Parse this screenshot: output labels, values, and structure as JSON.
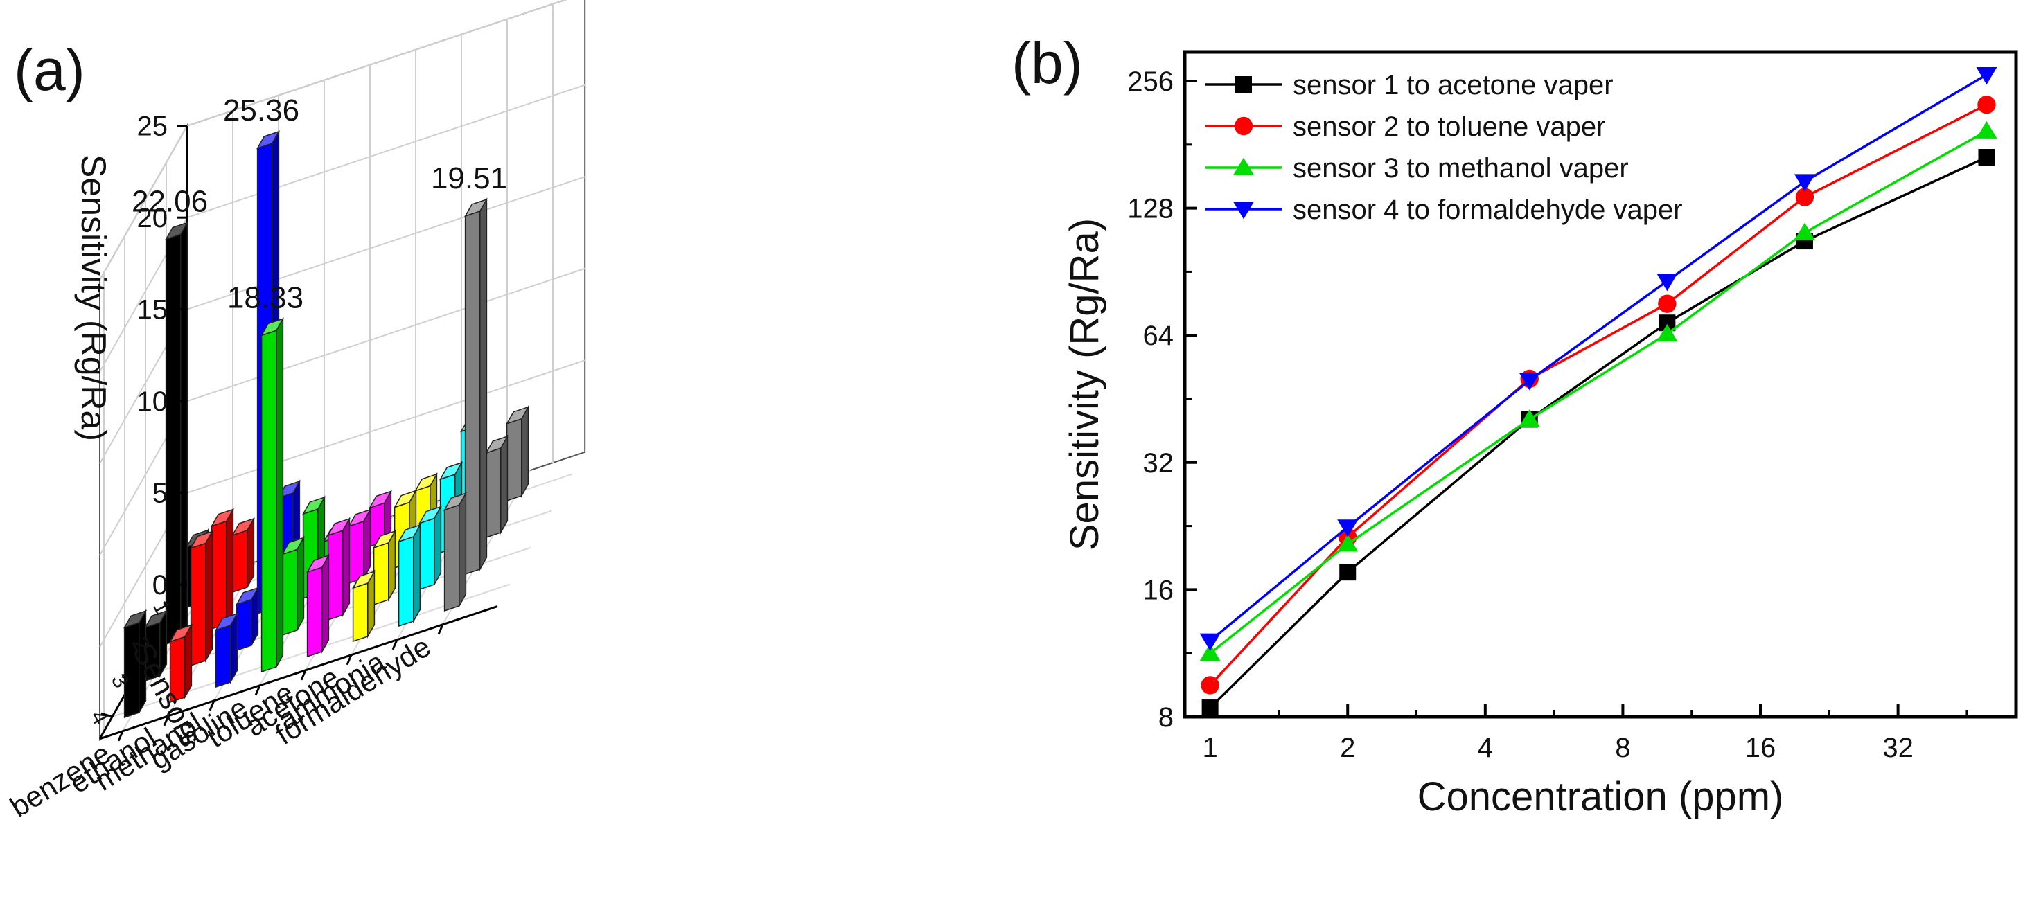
{
  "panels": {
    "a": "(a)",
    "b": "(b)"
  },
  "chart_data": [
    {
      "type": "bar",
      "subtype": "3d-bar",
      "title": "",
      "zlabel": "Sensitivity (Rg/Ra)",
      "ylabel": "Sensors",
      "xlabel": "",
      "categories": [
        "benzene",
        "ethanol",
        "methanol",
        "gasoline",
        "toluene",
        "acetone",
        "ammonia",
        "formaldehyde"
      ],
      "sensors": [
        "1",
        "2",
        "3",
        "4"
      ],
      "zlim": [
        0,
        25
      ],
      "zticks": [
        "0",
        "5",
        "10",
        "15",
        "20",
        "25"
      ],
      "series": [
        {
          "name": "1",
          "values": [
            3.3,
            3.1,
            4.3,
            1.1,
            2.1,
            2.2,
            4.6,
            4.2
          ]
        },
        {
          "name": "2",
          "values": [
            22.06,
            5.6,
            25.36,
            4.6,
            3.1,
            3.3,
            4.0,
            4.6
          ]
        },
        {
          "name": "3",
          "values": [
            2.9,
            6.4,
            2.5,
            4.4,
            4.6,
            3.1,
            3.6,
            19.51
          ]
        },
        {
          "name": "4",
          "values": [
            4.9,
            3.3,
            3.1,
            18.33,
            4.6,
            2.9,
            4.6,
            5.5
          ]
        }
      ],
      "annotations": [
        "22.06",
        "25.36",
        "18.33",
        "19.51"
      ],
      "colors": [
        "#000000",
        "#ff0000",
        "#0000ff",
        "#00dd00",
        "#ff00ff",
        "#ffff00",
        "#00ffff",
        "#808080"
      ]
    },
    {
      "type": "line",
      "title": "",
      "xlabel": "Concentration (ppm)",
      "ylabel": "Sensitivity (Rg/Ra)",
      "xscale": "log2",
      "yscale": "log2",
      "xlim": [
        0.88,
        58
      ],
      "ylim": [
        8,
        300
      ],
      "xticks": [
        "1",
        "2",
        "4",
        "8",
        "16",
        "32"
      ],
      "yticks": [
        "8",
        "16",
        "32",
        "64",
        "128",
        "256"
      ],
      "x": [
        1,
        2,
        5,
        10,
        20,
        50
      ],
      "legend_position": "top-left",
      "series": [
        {
          "name": "sensor 1 to acetone vaper",
          "color": "#000000",
          "marker": "square",
          "values": [
            8.4,
            17.6,
            40.5,
            68.5,
            107,
            169
          ]
        },
        {
          "name": "sensor 2 to toluene vaper",
          "color": "#ff0000",
          "marker": "circle",
          "values": [
            9.5,
            21.3,
            50.5,
            76,
            136,
            225
          ]
        },
        {
          "name": "sensor 3 to methanol vaper",
          "color": "#00dd00",
          "marker": "triangle-up",
          "values": [
            11.3,
            20.5,
            40.5,
            64.5,
            112,
            195
          ]
        },
        {
          "name": "sensor 4 to formaldehyde vaper",
          "color": "#0000ff",
          "marker": "triangle-down",
          "values": [
            12.1,
            22.5,
            50.1,
            86,
            148,
            265
          ]
        }
      ]
    }
  ]
}
